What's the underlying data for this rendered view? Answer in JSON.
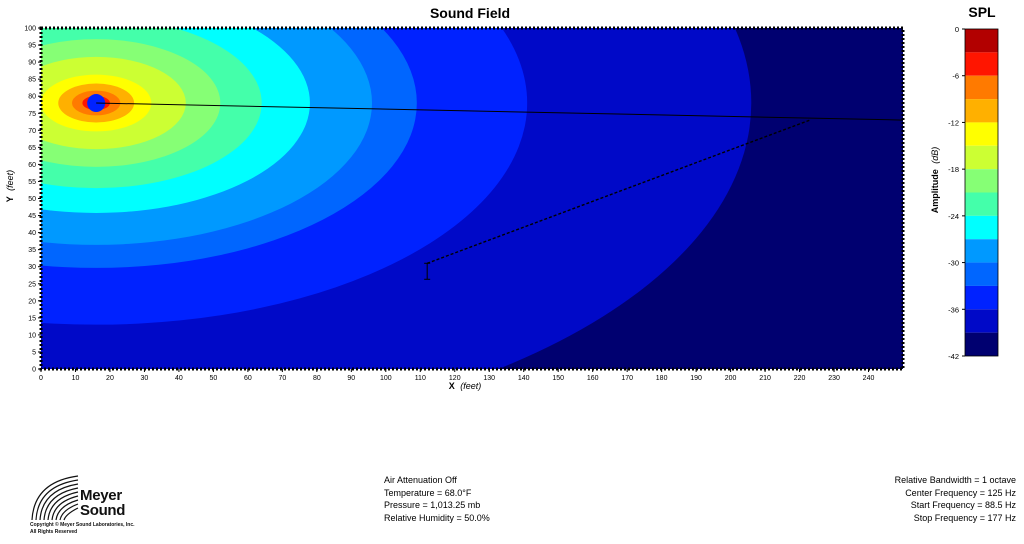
{
  "chart_data": {
    "type": "heatmap",
    "title": "Sound Field",
    "xlabel": "X",
    "xlabel_unit": "(feet)",
    "ylabel": "Y",
    "ylabel_unit": "(feet)",
    "xlim": [
      0,
      250
    ],
    "ylim": [
      0,
      100
    ],
    "xticks": [
      0,
      10,
      20,
      30,
      40,
      50,
      60,
      70,
      80,
      90,
      100,
      110,
      120,
      130,
      140,
      150,
      160,
      170,
      180,
      190,
      200,
      210,
      220,
      230,
      240
    ],
    "yticks": [
      0,
      5,
      10,
      15,
      20,
      25,
      30,
      35,
      40,
      45,
      50,
      55,
      60,
      65,
      70,
      75,
      80,
      85,
      90,
      95,
      100
    ],
    "source": {
      "x": 16,
      "y": 78,
      "aim_x": 250,
      "aim_y": 73
    },
    "measurement_path": {
      "from": [
        112,
        31
      ],
      "to": [
        223,
        73
      ]
    },
    "colorbar": {
      "title": "SPL",
      "label": "Amplitude",
      "label_unit": "(dB)",
      "ticks": [
        0,
        -6,
        -12,
        -18,
        -24,
        -30,
        -36,
        -42
      ],
      "range": [
        -42,
        0
      ],
      "bands": [
        {
          "from": 0,
          "to": -3,
          "color": "#b20000"
        },
        {
          "from": -3,
          "to": -6,
          "color": "#ff1500"
        },
        {
          "from": -6,
          "to": -9,
          "color": "#ff7a00"
        },
        {
          "from": -9,
          "to": -12,
          "color": "#ffb000"
        },
        {
          "from": -12,
          "to": -15,
          "color": "#ffff00"
        },
        {
          "from": -15,
          "to": -18,
          "color": "#ccff33"
        },
        {
          "from": -18,
          "to": -21,
          "color": "#86ff75"
        },
        {
          "from": -21,
          "to": -24,
          "color": "#44ffaa"
        },
        {
          "from": -24,
          "to": -27,
          "color": "#00ffff"
        },
        {
          "from": -27,
          "to": -30,
          "color": "#0099ff"
        },
        {
          "from": -30,
          "to": -33,
          "color": "#0066ff"
        },
        {
          "from": -33,
          "to": -36,
          "color": "#0022ff"
        },
        {
          "from": -36,
          "to": -39,
          "color": "#0009c8"
        },
        {
          "from": -39,
          "to": -42,
          "color": "#000070"
        }
      ]
    }
  },
  "settings_left": [
    "Air Attenuation Off",
    "Temperature = 68.0°F",
    "Pressure = 1,013.25  mb",
    "Relative Humidity = 50.0%"
  ],
  "settings_right": [
    "Relative Bandwidth = 1 octave",
    "Center Frequency = 125 Hz",
    "Start Frequency = 88.5 Hz",
    "Stop Frequency = 177 Hz"
  ],
  "logo": {
    "line1": "Meyer",
    "line2": "Sound",
    "copyright1": "Copyright © Meyer Sound Laboratories, Inc.",
    "copyright2": "All Rights Reserved"
  }
}
